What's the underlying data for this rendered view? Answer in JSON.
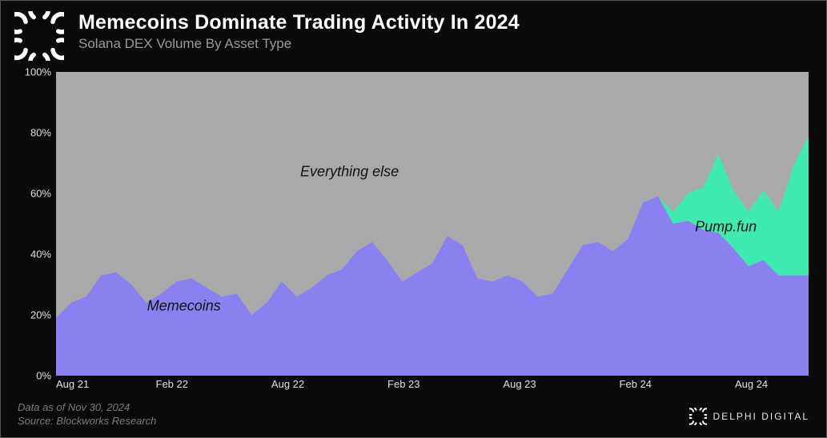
{
  "header": {
    "title": "Memecoins Dominate Trading Activity In 2024",
    "subtitle": "Solana DEX Volume By Asset Type"
  },
  "chart": {
    "type": "stacked-area",
    "background_color": "#a9a9a9",
    "page_background": "#0a0a0a",
    "ylim": [
      0,
      100
    ],
    "ytick_step": 20,
    "yticks": [
      "0%",
      "20%",
      "40%",
      "60%",
      "80%",
      "100%"
    ],
    "xtick_labels": [
      "Aug 21",
      "Feb 22",
      "Aug 22",
      "Feb 23",
      "Aug 23",
      "Feb 24",
      "Aug 24"
    ],
    "xtick_positions_pct": [
      0,
      15.4,
      30.8,
      46.2,
      61.6,
      77.0,
      92.4
    ],
    "series": {
      "memecoins": {
        "label": "Memecoins",
        "color": "#8b80f0",
        "values": [
          19,
          24,
          26,
          33,
          34,
          30,
          24,
          27,
          31,
          32,
          29,
          26,
          27,
          20,
          24,
          31,
          26,
          29,
          33,
          35,
          41,
          44,
          38,
          31,
          34,
          37,
          46,
          43,
          32,
          31,
          33,
          31,
          26,
          27,
          35,
          43,
          44,
          41,
          45,
          57,
          59,
          50,
          51,
          48,
          47,
          42,
          36,
          38,
          33,
          33,
          33
        ],
        "label_pos_pct": {
          "x": 17,
          "y": 77
        }
      },
      "pumpfun": {
        "label": "Pump.fun",
        "color": "#3feab0",
        "values": [
          0,
          0,
          0,
          0,
          0,
          0,
          0,
          0,
          0,
          0,
          0,
          0,
          0,
          0,
          0,
          0,
          0,
          0,
          0,
          0,
          0,
          0,
          0,
          0,
          0,
          0,
          0,
          0,
          0,
          0,
          0,
          0,
          0,
          0,
          0,
          0,
          0,
          0,
          0,
          0,
          0,
          4,
          9,
          14,
          26,
          19,
          18,
          23,
          21,
          36,
          46
        ],
        "label_pos_pct": {
          "x": 89,
          "y": 51
        }
      },
      "everything_else": {
        "label": "Everything else",
        "label_pos_pct": {
          "x": 39,
          "y": 33
        }
      }
    }
  },
  "footer": {
    "line1": "Data as of Nov 30, 2024",
    "line2": "Source: Blockworks Research"
  },
  "brand": {
    "name": "DELPHI DIGITAL"
  }
}
